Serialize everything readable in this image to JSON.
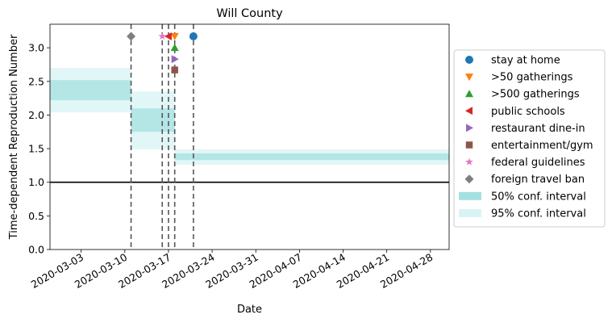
{
  "chart_data": {
    "type": "line",
    "title": "Will County",
    "xlabel": "Date",
    "ylabel": "Time-dependent Reproduction Number",
    "xlim": [
      "2020-02-27",
      "2020-05-01"
    ],
    "ylim": [
      0,
      3.35
    ],
    "x_ticks": [
      "2020-03-03",
      "2020-03-10",
      "2020-03-17",
      "2020-03-24",
      "2020-03-31",
      "2020-04-07",
      "2020-04-14",
      "2020-04-21",
      "2020-04-28"
    ],
    "y_ticks": [
      0.0,
      0.5,
      1.0,
      1.5,
      2.0,
      2.5,
      3.0
    ],
    "y_tick_labels": [
      "0.0",
      "0.5",
      "1.0",
      "1.5",
      "2.0",
      "2.5",
      "3.0"
    ],
    "reference_line": {
      "y": 1.0,
      "color": "#000000"
    },
    "intervals": [
      {
        "start": "2020-02-27",
        "end": "2020-03-11",
        "ci50": [
          2.22,
          2.52
        ],
        "ci95": [
          2.04,
          2.7
        ]
      },
      {
        "start": "2020-03-11",
        "end": "2020-03-18",
        "ci50": [
          1.75,
          2.1
        ],
        "ci95": [
          1.49,
          2.35
        ]
      },
      {
        "start": "2020-03-18",
        "end": "2020-05-01",
        "ci50": [
          1.33,
          1.43
        ],
        "ci95": [
          1.26,
          1.49
        ]
      }
    ],
    "interventions": [
      {
        "name": "stay at home",
        "date": "2020-03-21",
        "y": 3.17,
        "marker": "circle",
        "color": "#1f77b4"
      },
      {
        "name": ">50 gatherings",
        "date": "2020-03-18",
        "y": 3.17,
        "marker": "triangle-down",
        "color": "#ff7f0e"
      },
      {
        "name": ">500 gatherings",
        "date": "2020-03-18",
        "y": 3.0,
        "marker": "triangle-up",
        "color": "#2ca02c"
      },
      {
        "name": "public schools",
        "date": "2020-03-17",
        "y": 3.17,
        "marker": "triangle-left",
        "color": "#d62728"
      },
      {
        "name": "restaurant dine-in",
        "date": "2020-03-18",
        "y": 2.83,
        "marker": "triangle-right",
        "color": "#9467bd"
      },
      {
        "name": "entertainment/gym",
        "date": "2020-03-18",
        "y": 2.67,
        "marker": "square",
        "color": "#8c564b"
      },
      {
        "name": "federal guidelines",
        "date": "2020-03-16",
        "y": 3.17,
        "marker": "star",
        "color": "#e377c2"
      },
      {
        "name": "foreign travel ban",
        "date": "2020-03-11",
        "y": 3.17,
        "marker": "diamond",
        "color": "#7f7f7f"
      }
    ],
    "vlines": [
      "2020-03-11",
      "2020-03-16",
      "2020-03-17",
      "2020-03-18",
      "2020-03-21"
    ],
    "legend": {
      "position": "center-right",
      "entries": [
        "stay at home",
        ">50 gatherings",
        ">500 gatherings",
        "public schools",
        "restaurant dine-in",
        "entertainment/gym",
        "federal guidelines",
        "foreign travel ban",
        "50% conf. interval",
        "95% conf. interval"
      ]
    },
    "ci_colors": {
      "ci50": "#8fd8d8",
      "ci95": "#c9eef0"
    },
    "grid": false
  }
}
